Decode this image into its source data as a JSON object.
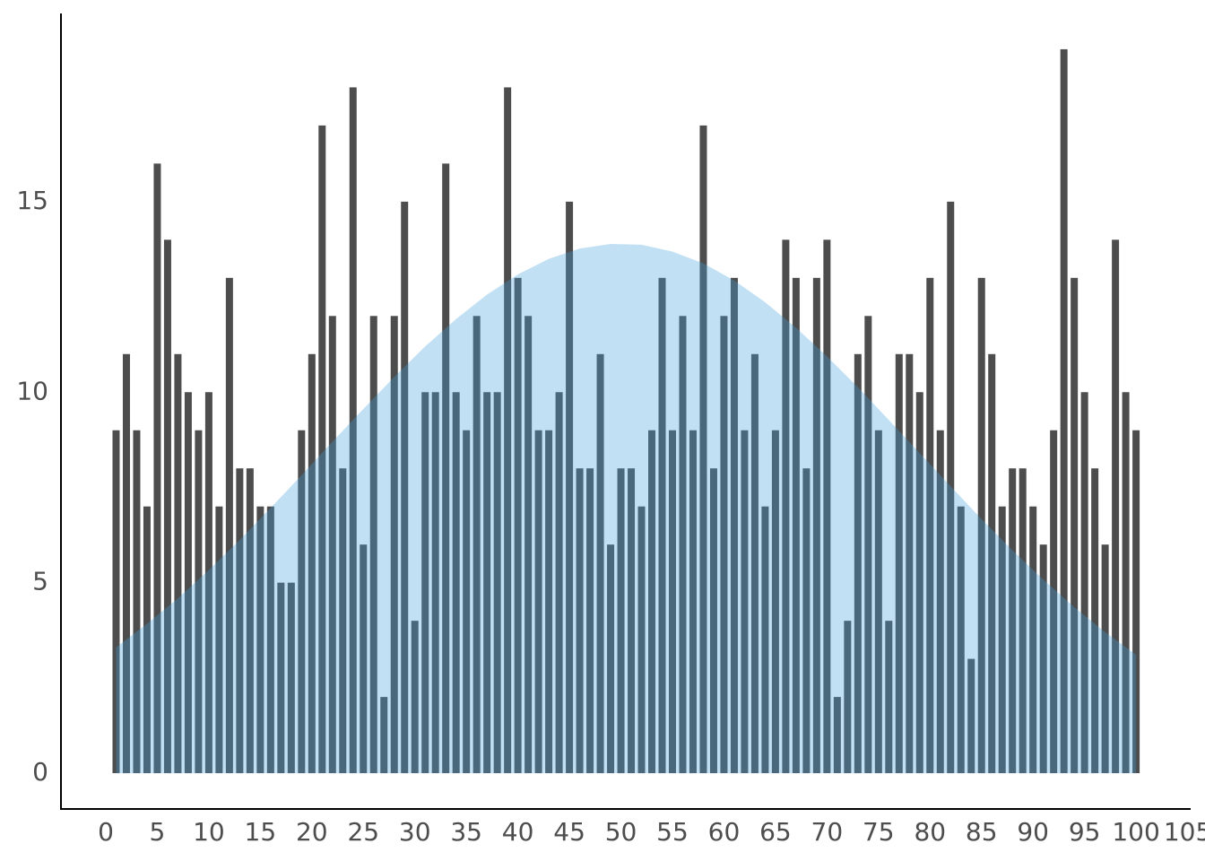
{
  "chart_data": {
    "type": "bar",
    "xlim": [
      -4.35,
      105.3
    ],
    "ylim": [
      -0.94,
      19.94
    ],
    "xticks": [
      0,
      5,
      10,
      15,
      20,
      25,
      30,
      35,
      40,
      45,
      50,
      55,
      60,
      65,
      70,
      75,
      80,
      85,
      90,
      95,
      100,
      105
    ],
    "yticks": [
      0,
      5,
      10,
      15
    ],
    "series": [
      {
        "type": "bar",
        "color": "#4d4d4d",
        "x": [
          1,
          2,
          3,
          4,
          5,
          6,
          7,
          8,
          9,
          10,
          11,
          12,
          13,
          14,
          15,
          16,
          17,
          18,
          19,
          20,
          21,
          22,
          23,
          24,
          25,
          26,
          27,
          28,
          29,
          30,
          31,
          32,
          33,
          34,
          35,
          36,
          37,
          38,
          39,
          40,
          41,
          42,
          43,
          44,
          45,
          46,
          47,
          48,
          49,
          50,
          51,
          52,
          53,
          54,
          55,
          56,
          57,
          58,
          59,
          60,
          61,
          62,
          63,
          64,
          65,
          66,
          67,
          68,
          69,
          70,
          71,
          72,
          73,
          74,
          75,
          76,
          77,
          78,
          79,
          80,
          81,
          82,
          83,
          84,
          85,
          86,
          87,
          88,
          89,
          90,
          91,
          92,
          93,
          94,
          95,
          96,
          97,
          98,
          99,
          100
        ],
        "values": [
          9,
          11,
          9,
          7,
          16,
          14,
          11,
          10,
          9,
          10,
          7,
          13,
          8,
          8,
          7,
          7,
          5,
          5,
          9,
          11,
          17,
          12,
          8,
          18,
          6,
          12,
          2,
          12,
          15,
          4,
          10,
          10,
          16,
          10,
          9,
          12,
          10,
          10,
          18,
          13,
          12,
          9,
          9,
          10,
          15,
          8,
          8,
          11,
          6,
          8,
          8,
          7,
          9,
          13,
          9,
          12,
          9,
          17,
          8,
          12,
          13,
          9,
          11,
          7,
          9,
          14,
          13,
          8,
          13,
          14,
          2,
          4,
          11,
          12,
          9,
          4,
          11,
          11,
          10,
          13,
          9,
          15,
          7,
          3,
          13,
          11,
          7,
          8,
          8,
          7,
          6,
          9,
          19,
          13,
          10,
          8,
          6,
          14,
          10,
          9
        ]
      },
      {
        "type": "area",
        "color": "#46a1da",
        "opacity": 0.33,
        "x": [
          1,
          4,
          7,
          10,
          13,
          16,
          19,
          22,
          25,
          28,
          31,
          34,
          37,
          40,
          43,
          46,
          49,
          52,
          55,
          58,
          61,
          64,
          67,
          70,
          73,
          76,
          79,
          82,
          85,
          88,
          91,
          94,
          97,
          100
        ],
        "values": [
          3.3,
          3.92,
          4.59,
          5.33,
          6.12,
          6.96,
          7.82,
          8.7,
          9.56,
          10.4,
          11.2,
          11.92,
          12.56,
          13.09,
          13.5,
          13.77,
          13.89,
          13.87,
          13.69,
          13.38,
          12.93,
          12.36,
          11.69,
          10.94,
          10.13,
          9.27,
          8.4,
          7.53,
          6.67,
          5.85,
          5.08,
          4.36,
          3.7,
          3.11
        ]
      }
    ]
  }
}
